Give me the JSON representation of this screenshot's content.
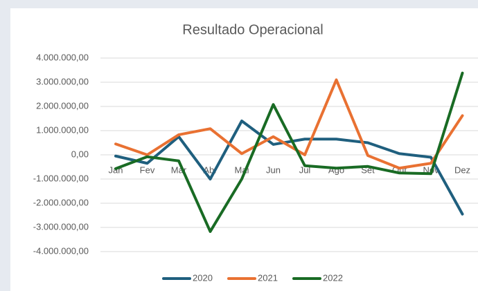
{
  "chart_data": {
    "type": "line",
    "title": "Resultado Operacional",
    "categories": [
      "Jan",
      "Fev",
      "Mar",
      "Abr",
      "Mai",
      "Jun",
      "Jul",
      "Ago",
      "Set",
      "Out",
      "Nov",
      "Dez"
    ],
    "series": [
      {
        "name": "2020",
        "color": "#1f5f7e",
        "values": [
          -50000,
          -350000,
          750000,
          -1000000,
          1400000,
          430000,
          650000,
          650000,
          500000,
          50000,
          -100000,
          -2450000
        ]
      },
      {
        "name": "2021",
        "color": "#e97132",
        "values": [
          450000,
          0,
          830000,
          1080000,
          50000,
          750000,
          0,
          3100000,
          -30000,
          -550000,
          -350000,
          1620000
        ]
      },
      {
        "name": "2022",
        "color": "#196b24",
        "values": [
          -570000,
          -80000,
          -250000,
          -3170000,
          -1000000,
          2080000,
          -450000,
          -550000,
          -480000,
          -750000,
          -780000,
          3380000
        ]
      }
    ],
    "ylim": [
      -4000000,
      4000000
    ],
    "yticks": [
      {
        "value": 4000000,
        "label": "4.000.000,00"
      },
      {
        "value": 3000000,
        "label": "3.000.000,00"
      },
      {
        "value": 2000000,
        "label": "2.000.000,00"
      },
      {
        "value": 1000000,
        "label": "1.000.000,00"
      },
      {
        "value": 0,
        "label": "0,00"
      },
      {
        "value": -1000000,
        "label": "-1.000.000,00"
      },
      {
        "value": -2000000,
        "label": "-2.000.000,00"
      },
      {
        "value": -3000000,
        "label": "-3.000.000,00"
      },
      {
        "value": -4000000,
        "label": "-4.000.000,00"
      }
    ],
    "grid": true,
    "legend": "bottom"
  }
}
